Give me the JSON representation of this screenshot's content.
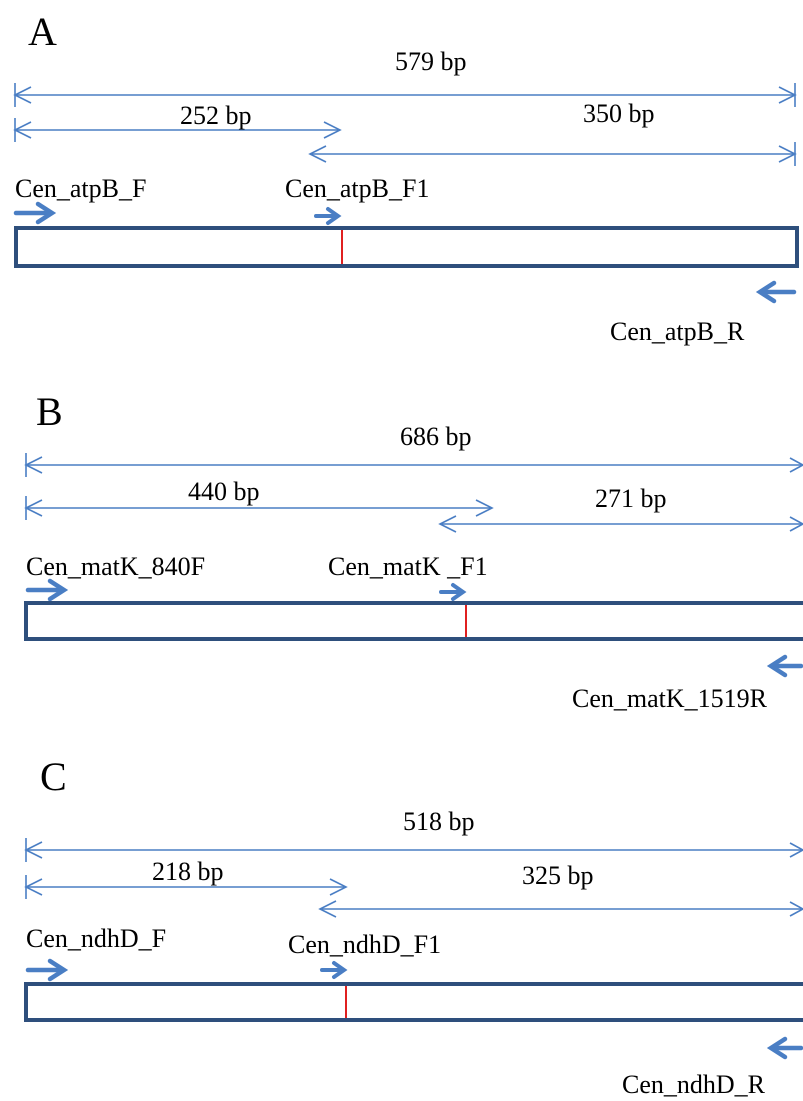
{
  "colors": {
    "dimension_line": "#4a7ec4",
    "primer_arrow": "#4a7ec4",
    "amplicon_box": "#2e4f7c",
    "cut_mark": "#e02020",
    "text": "#000000"
  },
  "panels": [
    {
      "letter": "A",
      "sizes": {
        "total": "579 bp",
        "left": "252 bp",
        "right": "350 bp"
      },
      "primers": {
        "forward": "Cen_atpB_F",
        "internal": "Cen_atpB_F1",
        "reverse": "Cen_atpB_R"
      }
    },
    {
      "letter": "B",
      "sizes": {
        "total": "686 bp",
        "left": "440 bp",
        "right": "271 bp"
      },
      "primers": {
        "forward": "Cen_matK_840F",
        "internal": "Cen_matK _F1",
        "reverse": "Cen_matK_1519R"
      }
    },
    {
      "letter": "C",
      "sizes": {
        "total": "518 bp",
        "left": "218 bp",
        "right": "325 bp"
      },
      "primers": {
        "forward": "Cen_ndhD_F",
        "internal": "Cen_ndhD_F1",
        "reverse": "Cen_ndhD_R"
      }
    }
  ]
}
